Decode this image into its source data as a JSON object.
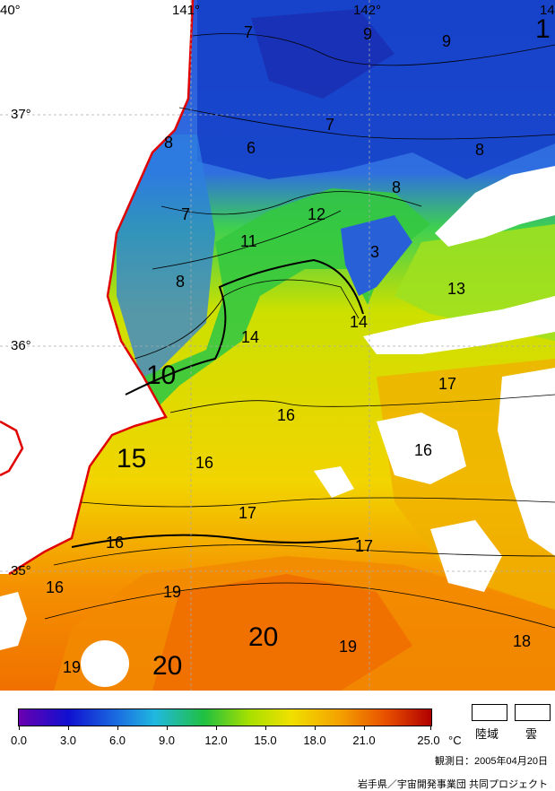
{
  "map": {
    "coords": {
      "lon_140": "40°",
      "lon_141": "141°",
      "lon_142": "142°",
      "lon_143": "14",
      "lat_37": "37°",
      "lat_36": "36°",
      "lat_35": "35°"
    },
    "isotherms": [
      "7",
      "9",
      "9",
      "1",
      "7",
      "8",
      "6",
      "8",
      "8",
      "7",
      "12",
      "11",
      "3",
      "13",
      "8",
      "14",
      "14",
      "10",
      "17",
      "16",
      "16",
      "15",
      "16",
      "17",
      "16",
      "17",
      "16",
      "19",
      "19",
      "20",
      "20",
      "18"
    ],
    "colors": {
      "land": "#ffffff",
      "coastline": "#e00000",
      "cold": "#1a3fd0",
      "cool": "#2b8fe0",
      "mid": "#2ec04a",
      "warm": "#d8e000",
      "hot": "#f07a00"
    }
  },
  "legend": {
    "ticks": [
      "0.0",
      "3.0",
      "6.0",
      "9.0",
      "12.0",
      "15.0",
      "18.0",
      "21.0",
      "25.0"
    ],
    "unit": "°C",
    "land_label": "陸域",
    "cloud_label": "雲",
    "date": "観測日：2005年04月20日",
    "credit": "岩手県／宇宙開発事業団 共同プロジェクト"
  }
}
